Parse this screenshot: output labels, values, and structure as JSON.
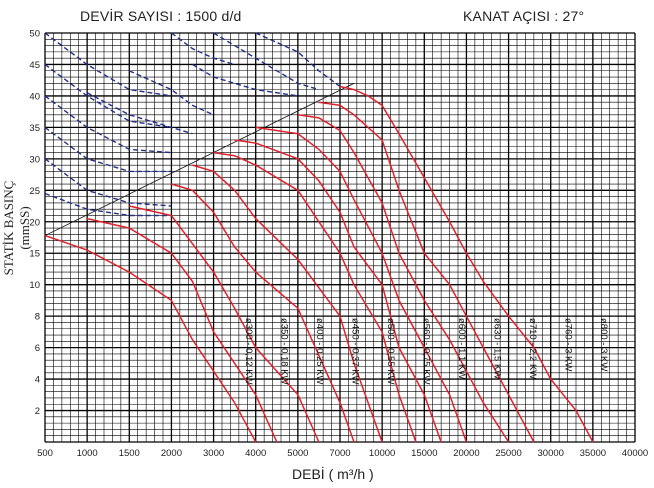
{
  "header": {
    "speed": "DEVİR SAYISI : 1500 d/d",
    "blade_angle": "KANAT AÇISI : 27°"
  },
  "chart_data": {
    "type": "line",
    "title": "DEVİR SAYISI : 1500 d/d",
    "subtitle": "KANAT AÇISI : 27°",
    "xlabel": "DEBİ  ( m³/h )",
    "ylabel": "STATİK BASINÇ  (mmSS)",
    "x_ticks": [
      "500",
      "1000",
      "1500",
      "2000",
      "3000",
      "4000",
      "5000",
      "7000",
      "10000",
      "15000",
      "20000",
      "25000",
      "30000",
      "35000",
      "40000"
    ],
    "y_ticks": [
      "2",
      "4",
      "6",
      "8",
      "10",
      "15",
      "20",
      "25",
      "30",
      "35",
      "40",
      "45",
      "50"
    ],
    "grid": true,
    "colors": {
      "curve": "#e0202a",
      "dashed": "#20308a",
      "grid": "#000000"
    },
    "series": [
      {
        "name": "ø300 - 0,12 KW",
        "points": [
          [
            500,
            17.8
          ],
          [
            1000,
            15.5
          ],
          [
            1500,
            12
          ],
          [
            2000,
            9
          ],
          [
            2500,
            6.5
          ],
          [
            3000,
            4.5
          ],
          [
            3500,
            2.5
          ],
          [
            4000,
            0
          ]
        ]
      },
      {
        "name": "ø350 - 0,18 KW",
        "points": [
          [
            1000,
            20.5
          ],
          [
            1500,
            19
          ],
          [
            2000,
            15
          ],
          [
            2500,
            10.5
          ],
          [
            3000,
            7
          ],
          [
            3500,
            5
          ],
          [
            4000,
            3
          ],
          [
            4500,
            0
          ]
        ]
      },
      {
        "name": "ø400 - 0,25 KW",
        "points": [
          [
            1500,
            22.5
          ],
          [
            2000,
            21
          ],
          [
            2500,
            16.5
          ],
          [
            3000,
            12
          ],
          [
            3500,
            8.5
          ],
          [
            4000,
            6
          ],
          [
            5000,
            3
          ],
          [
            6000,
            0
          ]
        ]
      },
      {
        "name": "ø450 - 0,37 KW",
        "points": [
          [
            2000,
            26
          ],
          [
            2500,
            25
          ],
          [
            3000,
            21.5
          ],
          [
            3500,
            16
          ],
          [
            4000,
            12
          ],
          [
            5000,
            8.5
          ],
          [
            6000,
            5.5
          ],
          [
            7000,
            2.5
          ],
          [
            8000,
            0
          ]
        ]
      },
      {
        "name": "ø500 - 0,55 KW",
        "points": [
          [
            2500,
            29
          ],
          [
            3000,
            28
          ],
          [
            3500,
            25
          ],
          [
            4000,
            20.5
          ],
          [
            5000,
            14
          ],
          [
            7000,
            8
          ],
          [
            8000,
            5
          ],
          [
            9000,
            2.5
          ],
          [
            10000,
            0
          ]
        ]
      },
      {
        "name": "ø560 - 0,75 KW",
        "points": [
          [
            3000,
            31
          ],
          [
            3500,
            30.5
          ],
          [
            4000,
            29
          ],
          [
            5000,
            25
          ],
          [
            6000,
            20
          ],
          [
            7000,
            15
          ],
          [
            8000,
            10
          ],
          [
            10000,
            7
          ],
          [
            12000,
            3
          ],
          [
            14000,
            0
          ]
        ]
      },
      {
        "name": "ø600 - 1,1 KW",
        "points": [
          [
            3500,
            33
          ],
          [
            4000,
            32.5
          ],
          [
            5000,
            30
          ],
          [
            6000,
            26.5
          ],
          [
            7000,
            21.5
          ],
          [
            8000,
            16
          ],
          [
            10000,
            10
          ],
          [
            12000,
            6
          ],
          [
            15000,
            3
          ],
          [
            17000,
            0
          ]
        ]
      },
      {
        "name": "ø630 - 1,5 KW",
        "points": [
          [
            4000,
            35
          ],
          [
            5000,
            34
          ],
          [
            6000,
            31.5
          ],
          [
            7000,
            28
          ],
          [
            8000,
            23.5
          ],
          [
            10000,
            15
          ],
          [
            12000,
            9
          ],
          [
            15000,
            6
          ],
          [
            18000,
            3
          ],
          [
            20000,
            0
          ]
        ]
      },
      {
        "name": "ø710 - 2,2 KW",
        "points": [
          [
            5000,
            37
          ],
          [
            6000,
            36.5
          ],
          [
            7000,
            34.5
          ],
          [
            8000,
            31
          ],
          [
            10000,
            23
          ],
          [
            12000,
            15
          ],
          [
            15000,
            9
          ],
          [
            18000,
            6.5
          ],
          [
            20000,
            4.5
          ],
          [
            22000,
            2.5
          ],
          [
            25000,
            0
          ]
        ]
      },
      {
        "name": "ø760 - 3 KW",
        "points": [
          [
            6000,
            39
          ],
          [
            7000,
            38.5
          ],
          [
            8000,
            37
          ],
          [
            10000,
            33
          ],
          [
            12000,
            25
          ],
          [
            15000,
            15
          ],
          [
            18000,
            10
          ],
          [
            20000,
            8
          ],
          [
            22000,
            6
          ],
          [
            25000,
            3
          ],
          [
            28000,
            0
          ]
        ]
      },
      {
        "name": "ø800 - 3 KW",
        "points": [
          [
            7000,
            41.5
          ],
          [
            8000,
            41
          ],
          [
            9000,
            40
          ],
          [
            10000,
            38.5
          ],
          [
            12000,
            34
          ],
          [
            15000,
            27
          ],
          [
            18000,
            20
          ],
          [
            20000,
            15
          ],
          [
            22000,
            10.5
          ],
          [
            25000,
            8
          ],
          [
            28000,
            6
          ],
          [
            30000,
            4
          ],
          [
            33000,
            2
          ],
          [
            35000,
            0
          ]
        ]
      }
    ],
    "dashed_series": [
      {
        "points": [
          [
            500,
            50
          ],
          [
            1000,
            45
          ],
          [
            1500,
            41
          ],
          [
            2000,
            40
          ]
        ]
      },
      {
        "points": [
          [
            500,
            45
          ],
          [
            1000,
            40
          ],
          [
            1500,
            36
          ],
          [
            2000,
            35
          ]
        ]
      },
      {
        "points": [
          [
            500,
            40
          ],
          [
            1000,
            35
          ],
          [
            1500,
            31.5
          ],
          [
            2000,
            31
          ]
        ]
      },
      {
        "points": [
          [
            500,
            35
          ],
          [
            1000,
            30
          ],
          [
            1500,
            28
          ],
          [
            2000,
            28
          ]
        ]
      },
      {
        "points": [
          [
            500,
            30
          ],
          [
            1000,
            25
          ],
          [
            1500,
            23
          ],
          [
            2000,
            22.5
          ]
        ]
      },
      {
        "points": [
          [
            500,
            24.5
          ],
          [
            1000,
            22
          ],
          [
            1500,
            21
          ],
          [
            2000,
            21
          ]
        ]
      },
      {
        "points": [
          [
            2000,
            50
          ],
          [
            2500,
            47.5
          ],
          [
            3000,
            46
          ],
          [
            3500,
            45
          ]
        ]
      },
      {
        "points": [
          [
            3000,
            50
          ],
          [
            4000,
            46
          ],
          [
            5000,
            42
          ],
          [
            6000,
            41
          ]
        ]
      },
      {
        "points": [
          [
            4000,
            50
          ],
          [
            5000,
            47
          ],
          [
            6000,
            44
          ],
          [
            7000,
            41.5
          ]
        ]
      },
      {
        "points": [
          [
            2500,
            45
          ],
          [
            3000,
            43
          ],
          [
            4000,
            41
          ],
          [
            5000,
            40
          ]
        ]
      },
      {
        "points": [
          [
            1500,
            44
          ],
          [
            2000,
            41
          ],
          [
            2500,
            38.5
          ],
          [
            3000,
            37
          ]
        ]
      },
      {
        "points": [
          [
            1000,
            40.5
          ],
          [
            1500,
            37
          ],
          [
            2000,
            35
          ],
          [
            2500,
            34
          ]
        ]
      }
    ],
    "reference_line": {
      "points": [
        [
          500,
          17.8
        ],
        [
          8000,
          42
        ]
      ]
    }
  }
}
